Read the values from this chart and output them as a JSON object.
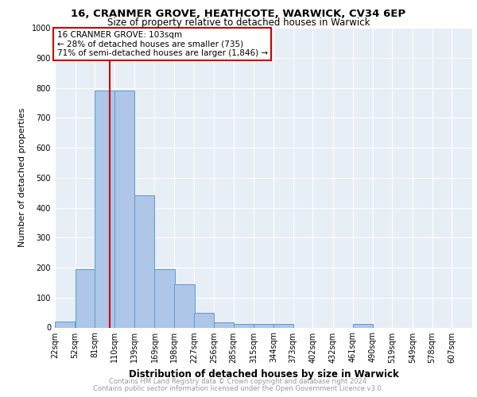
{
  "title1": "16, CRANMER GROVE, HEATHCOTE, WARWICK, CV34 6EP",
  "title2": "Size of property relative to detached houses in Warwick",
  "xlabel": "Distribution of detached houses by size in Warwick",
  "ylabel": "Number of detached properties",
  "bin_labels": [
    "22sqm",
    "52sqm",
    "81sqm",
    "110sqm",
    "139sqm",
    "169sqm",
    "198sqm",
    "227sqm",
    "256sqm",
    "285sqm",
    "315sqm",
    "344sqm",
    "373sqm",
    "402sqm",
    "432sqm",
    "461sqm",
    "490sqm",
    "519sqm",
    "549sqm",
    "578sqm",
    "607sqm"
  ],
  "bin_edges": [
    22,
    52,
    81,
    110,
    139,
    169,
    198,
    227,
    256,
    285,
    315,
    344,
    373,
    402,
    432,
    461,
    490,
    519,
    549,
    578,
    607
  ],
  "bar_heights": [
    20,
    195,
    790,
    790,
    440,
    195,
    145,
    50,
    18,
    12,
    12,
    12,
    0,
    0,
    0,
    12,
    0,
    0,
    0,
    0,
    0
  ],
  "bar_color": "#aec6e8",
  "bar_edge_color": "#5b9bd5",
  "property_line_x": 103,
  "annotation_line1": "16 CRANMER GROVE: 103sqm",
  "annotation_line2": "← 28% of detached houses are smaller (735)",
  "annotation_line3": "71% of semi-detached houses are larger (1,846) →",
  "annotation_box_color": "#cc0000",
  "ylim": [
    0,
    1000
  ],
  "yticks": [
    0,
    100,
    200,
    300,
    400,
    500,
    600,
    700,
    800,
    900,
    1000
  ],
  "footer1": "Contains HM Land Registry data © Crown copyright and database right 2024.",
  "footer2": "Contains public sector information licensed under the Open Government Licence v3.0.",
  "plot_bg_color": "#e8eef5"
}
